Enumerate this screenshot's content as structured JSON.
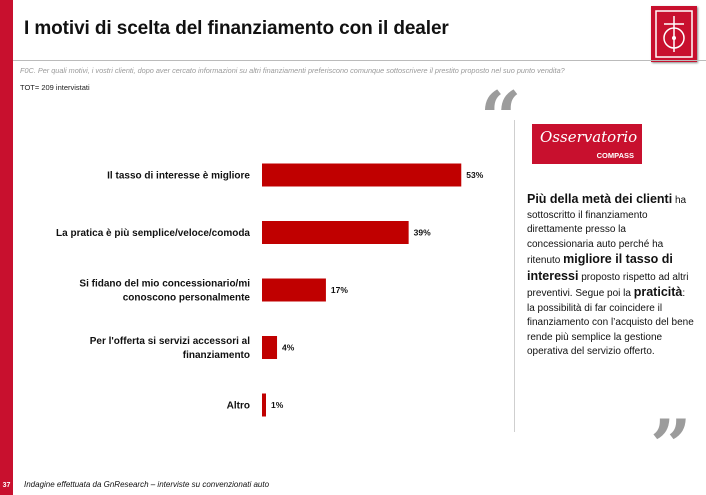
{
  "page": {
    "title": "I motivi di scelta del finanziamento con il dealer",
    "question": "F0C. Per quali motivi, i vostri clienti, dopo aver cercato informazioni su altri finanziamenti preferiscono comunque sottoscrivere il prestito proposto nel suo punto vendita?",
    "total": "TOT= 209 intervistati",
    "footnote": "Indagine effettuata da GnResearch – interviste su convenzionati auto",
    "page_number": "37"
  },
  "colors": {
    "accent": "#c8102e",
    "bar": "#c00000",
    "quote": "#9c9c9c"
  },
  "sidebar": {
    "logo_name": "Osservatorio",
    "logo_sub": "COMPASS",
    "quote_open": "“",
    "quote_close": "”",
    "text": {
      "b1": "Più della metà dei clienti",
      "t1": " ha sottoscritto il finanziamento direttamente presso la concessionaria auto perché ha ritenuto ",
      "b2": "migliore il tasso di interessi",
      "t2": " proposto rispetto ad altri preventivi. Segue poi la ",
      "b3": "praticità",
      "t3": ": la possibilità di far coincidere il finanziamento con l’acquisto del bene rende più semplice la gestione operativa del servizio offerto."
    }
  },
  "chart_data": {
    "type": "bar",
    "orientation": "horizontal",
    "categories": [
      [
        "Il tasso di interesse è migliore"
      ],
      [
        "La pratica è più semplice/veloce/comoda"
      ],
      [
        "Si fidano del mio concessionario/mi",
        "conoscono personalmente"
      ],
      [
        "Per l'offerta si servizi accessori al",
        "finanziamento"
      ],
      [
        "Altro"
      ]
    ],
    "values": [
      53,
      39,
      17,
      4,
      1
    ],
    "value_labels": [
      "53%",
      "39%",
      "17%",
      "4%",
      "1%"
    ],
    "unit": "%",
    "xlim": [
      0,
      100
    ],
    "grid": false,
    "legend": false
  }
}
